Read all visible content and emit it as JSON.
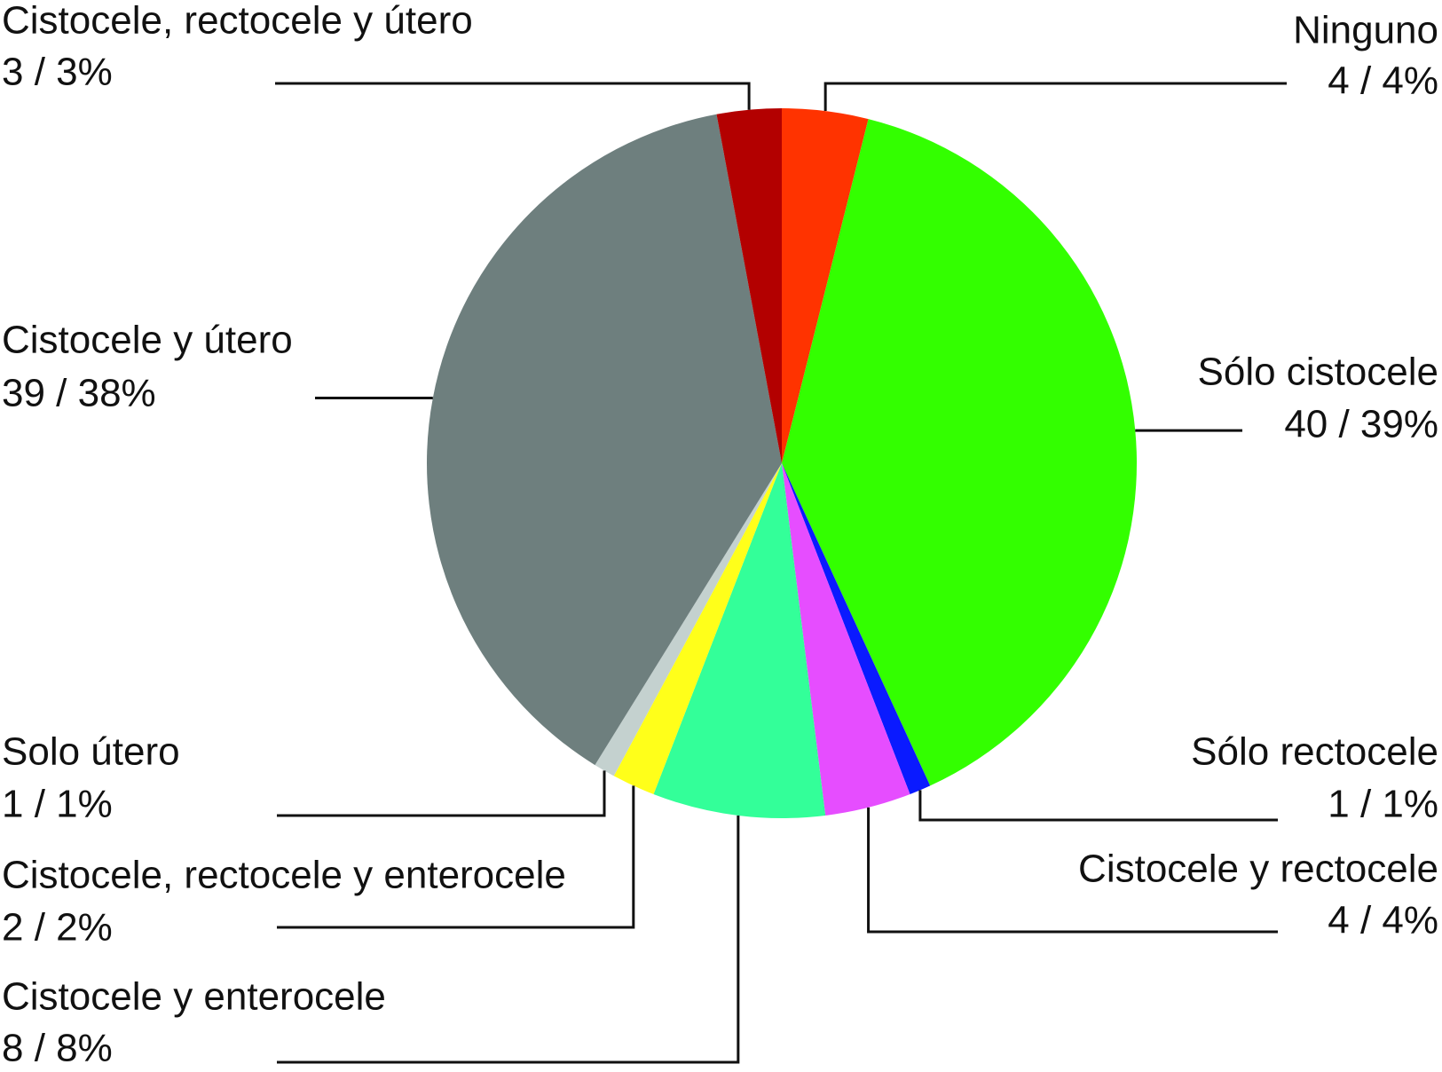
{
  "chart_data": {
    "type": "pie",
    "categories": [
      "Ninguno",
      "Sólo cistocele",
      "Sólo rectocele",
      "Cistocele y rectocele",
      "Cistocele y enterocele",
      "Cistocele, rectocele y enterocele",
      "Solo útero",
      "Cistocele y útero",
      "Cistocele, rectocele y útero"
    ],
    "values": [
      4,
      40,
      1,
      4,
      8,
      2,
      1,
      39,
      3
    ],
    "value_labels": [
      "4 / 4%",
      "40 / 39%",
      "1 / 1%",
      "4 / 4%",
      "8 / 8%",
      "2 / 2%",
      "1 / 1%",
      "39 / 38%",
      "3 / 3%"
    ],
    "colors": [
      "#ff3300",
      "#33ff00",
      "#0a1aff",
      "#e64dff",
      "#33ff99",
      "#ffff1a",
      "#c4d1cf",
      "#6e7f7e",
      "#b30000"
    ]
  }
}
